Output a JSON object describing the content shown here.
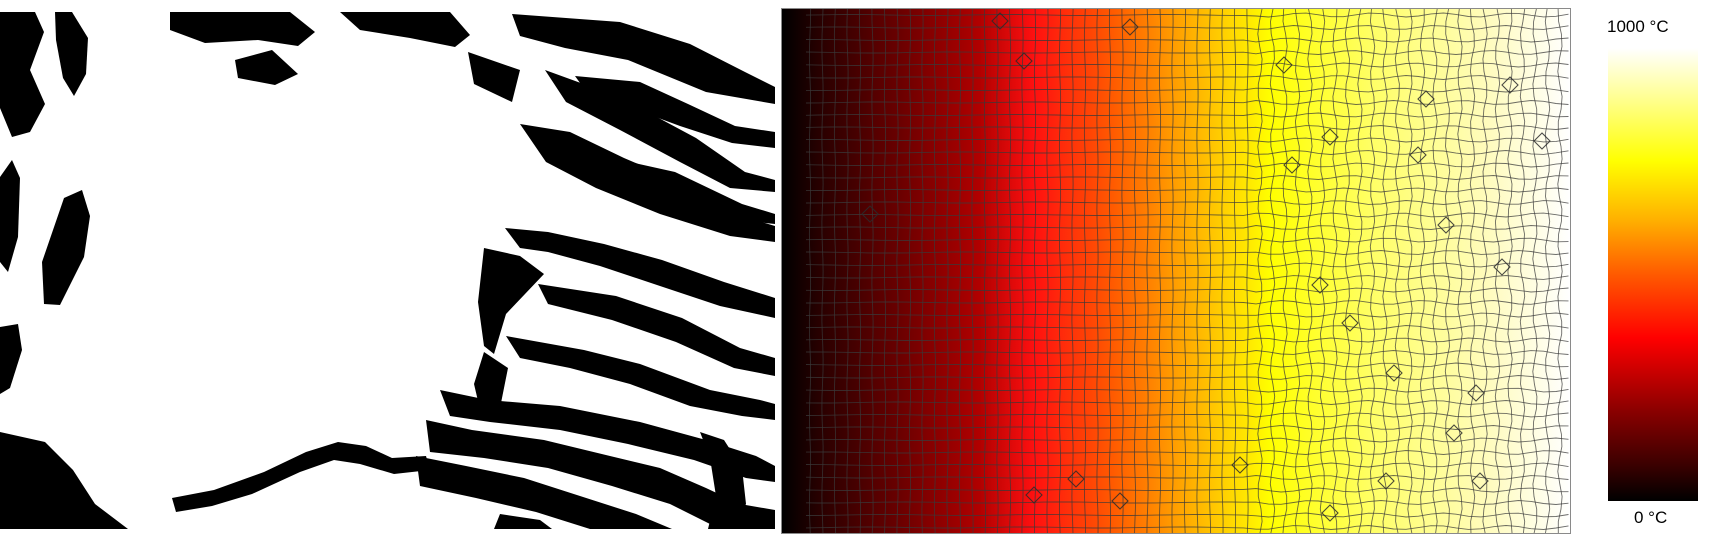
{
  "legend": {
    "max_label": "1000 °C",
    "min_label": "0 °C"
  },
  "colors": {
    "background": "#ffffff",
    "binary_dark": "#000000",
    "binary_light": "#ffffff",
    "mesh_lines": "#3a3a3a",
    "legend_low": "#000000",
    "legend_mid_red": "#ff0000",
    "legend_mid_orange": "#ff9900",
    "legend_high_yellow": "#ffff00",
    "legend_top_white": "#ffffff"
  }
}
